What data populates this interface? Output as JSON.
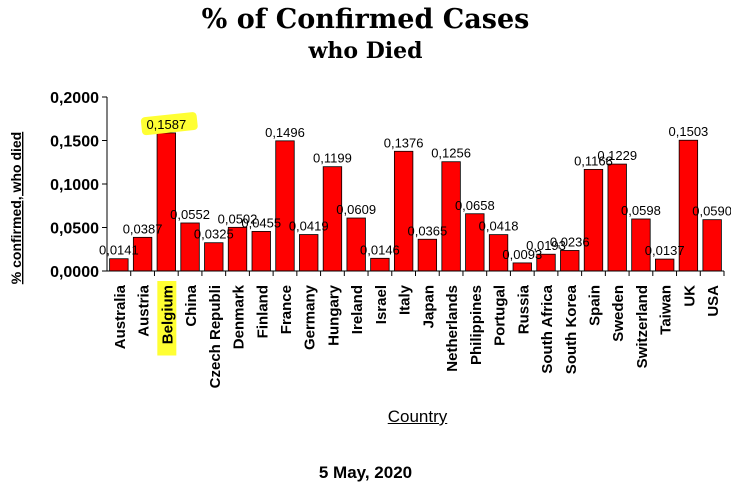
{
  "chart_data": {
    "type": "bar",
    "title": "% of Confirmed Cases",
    "subtitle": "who Died",
    "xlabel": "Country",
    "ylabel": "% confirmed, who died",
    "footer": "5 May, 2020",
    "ylim": [
      0,
      0.2
    ],
    "yticks": [
      "0,0000",
      "0,0500",
      "0,1000",
      "0,1500",
      "0,2000"
    ],
    "grid": false,
    "legend": "none",
    "highlight": "Belgium",
    "bar_color": "#ff0000",
    "highlight_color": "#ffff33",
    "categories": [
      "Australia",
      "Austria",
      "Belgium",
      "China",
      "Czech Republi",
      "Denmark",
      "Finland",
      "France",
      "Germany",
      "Hungary",
      "Ireland",
      "Israel",
      "Italy",
      "Japan",
      "Netherlands",
      "Philippines",
      "Portugal",
      "Russia",
      "South Africa",
      "South Korea",
      "Spain",
      "Sweden",
      "Switzerland",
      "Taiwan",
      "UK",
      "USA"
    ],
    "values": [
      0.0141,
      0.0387,
      0.1587,
      0.0552,
      0.0325,
      0.0502,
      0.0455,
      0.1496,
      0.0419,
      0.1199,
      0.0609,
      0.0146,
      0.1376,
      0.0365,
      0.1256,
      0.0658,
      0.0418,
      0.0093,
      0.0193,
      0.0236,
      0.1168,
      0.1229,
      0.0598,
      0.0137,
      0.1503,
      0.059
    ],
    "value_labels": [
      "0,0141",
      "0,0387",
      "0,1587",
      "0,0552",
      "0,0325",
      "0,0502",
      "0,0455",
      "0,1496",
      "0,0419",
      "0,1199",
      "0,0609",
      "0,0146",
      "0,1376",
      "0,0365",
      "0,1256",
      "0,0658",
      "0,0418",
      "0,0093",
      "0,0193",
      "0,0236",
      "0,1168",
      "0,1229",
      "0,0598",
      "0,0137",
      "0,1503",
      "0,0590"
    ]
  }
}
